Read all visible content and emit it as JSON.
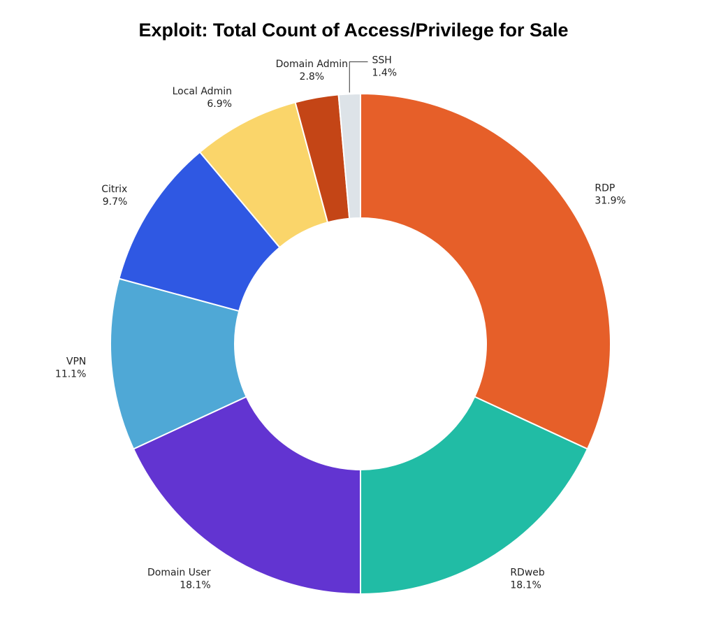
{
  "chart_data": {
    "type": "pie",
    "title": "Exploit: Total Count of Access/Privilege for Sale",
    "donut": true,
    "slices": [
      {
        "label": "RDP",
        "value": 31.9,
        "display": "31.9%",
        "color": "#E65F29"
      },
      {
        "label": "RDweb",
        "value": 18.1,
        "display": "18.1%",
        "color": "#21BCA5"
      },
      {
        "label": "Domain User",
        "value": 18.1,
        "display": "18.1%",
        "color": "#6234D1"
      },
      {
        "label": "VPN",
        "value": 11.1,
        "display": "11.1%",
        "color": "#4FA8D6"
      },
      {
        "label": "Citrix",
        "value": 9.7,
        "display": "9.7%",
        "color": "#2F58E3"
      },
      {
        "label": "Local Admin",
        "value": 6.9,
        "display": "6.9%",
        "color": "#FAD56A"
      },
      {
        "label": "Domain Admin",
        "value": 2.8,
        "display": "2.8%",
        "color": "#C44516"
      },
      {
        "label": "SSH",
        "value": 1.4,
        "display": "1.4%",
        "color": "#DDE3E8"
      }
    ]
  }
}
